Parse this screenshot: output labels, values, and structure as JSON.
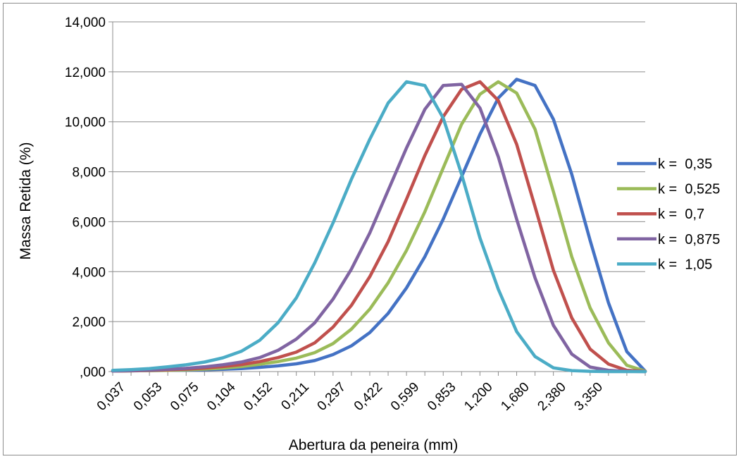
{
  "chart_data": {
    "type": "line",
    "xlabel": "Abertura da peneira (mm)",
    "ylabel": "Massa Retida (%)",
    "ylim": [
      0,
      14
    ],
    "y_ticks": [
      ",000",
      "2,000",
      "4,000",
      "6,000",
      "8,000",
      "10,000",
      "12,000",
      "14,000"
    ],
    "x_tick_labels": [
      "0,037",
      "0,053",
      "0,075",
      "0,104",
      "0,152",
      "0,211",
      "0,297",
      "0,422",
      "0,599",
      "0,853",
      "1,200",
      "1,680",
      "2,380",
      "3,350"
    ],
    "grid": "horizontal",
    "legend_position": "right",
    "series": [
      {
        "name": "k =  0,35",
        "color": "#4472C4",
        "values": [
          0.02,
          0.03,
          0.04,
          0.05,
          0.06,
          0.07,
          0.09,
          0.12,
          0.17,
          0.23,
          0.31,
          0.44,
          0.68,
          1.03,
          1.56,
          2.33,
          3.35,
          4.6,
          6.1,
          7.8,
          9.5,
          10.95,
          11.7,
          11.45,
          10.1,
          7.9,
          5.25,
          2.75,
          0.8,
          0.02
        ]
      },
      {
        "name": "k =  0,525",
        "color": "#9BBB59",
        "values": [
          0.02,
          0.03,
          0.04,
          0.05,
          0.07,
          0.1,
          0.14,
          0.2,
          0.29,
          0.4,
          0.54,
          0.76,
          1.12,
          1.7,
          2.5,
          3.55,
          4.85,
          6.4,
          8.15,
          9.9,
          11.1,
          11.6,
          11.15,
          9.7,
          7.2,
          4.6,
          2.55,
          1.15,
          0.25,
          0.02
        ]
      },
      {
        "name": "k =  0,7",
        "color": "#C0504D",
        "values": [
          0.02,
          0.03,
          0.05,
          0.07,
          0.1,
          0.14,
          0.2,
          0.28,
          0.4,
          0.56,
          0.78,
          1.15,
          1.78,
          2.65,
          3.8,
          5.2,
          6.9,
          8.65,
          10.2,
          11.3,
          11.6,
          10.85,
          9.1,
          6.6,
          4.05,
          2.15,
          0.9,
          0.3,
          0.05,
          0.01
        ]
      },
      {
        "name": "k =  0,875",
        "color": "#8064A2",
        "values": [
          0.02,
          0.04,
          0.06,
          0.09,
          0.13,
          0.19,
          0.27,
          0.38,
          0.56,
          0.85,
          1.3,
          1.95,
          2.9,
          4.1,
          5.55,
          7.25,
          8.95,
          10.5,
          11.45,
          11.5,
          10.55,
          8.6,
          6.1,
          3.75,
          1.85,
          0.7,
          0.18,
          0.05,
          0.01,
          0.0
        ]
      },
      {
        "name": "k =  1,05",
        "color": "#4BACC6",
        "values": [
          0.05,
          0.08,
          0.12,
          0.19,
          0.27,
          0.38,
          0.55,
          0.81,
          1.25,
          1.95,
          2.95,
          4.35,
          5.95,
          7.7,
          9.3,
          10.75,
          11.6,
          11.45,
          10.15,
          7.9,
          5.35,
          3.3,
          1.6,
          0.6,
          0.15,
          0.04,
          0.01,
          0.0,
          0.0,
          0.0
        ]
      }
    ]
  }
}
